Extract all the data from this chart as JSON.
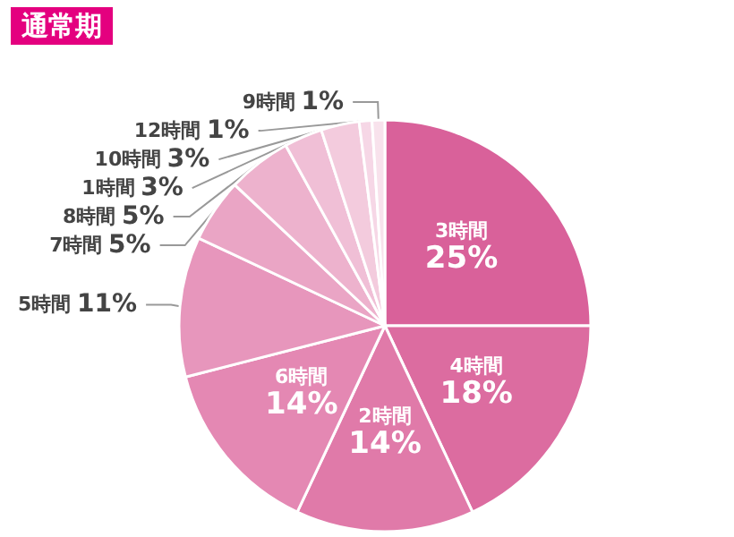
{
  "chart_data": {
    "type": "pie",
    "title": "通常期",
    "categories": [
      "3時間",
      "4時間",
      "2時間",
      "6時間",
      "5時間",
      "7時間",
      "8時間",
      "1時間",
      "10時間",
      "12時間",
      "9時間"
    ],
    "values": [
      25,
      18,
      14,
      14,
      11,
      5,
      5,
      3,
      3,
      1,
      1
    ],
    "value_labels": [
      "25%",
      "18%",
      "14%",
      "14%",
      "11%",
      "5%",
      "5%",
      "3%",
      "3%",
      "1%",
      "1%"
    ],
    "colors": [
      "#d9619a",
      "#dc6ca0",
      "#e07aa9",
      "#e488b3",
      "#e796bc",
      "#eaa5c5",
      "#edb2cd",
      "#f0bfd6",
      "#f3cbdd",
      "#f6d7e6",
      "#f8e2ec"
    ],
    "legend": false
  }
}
